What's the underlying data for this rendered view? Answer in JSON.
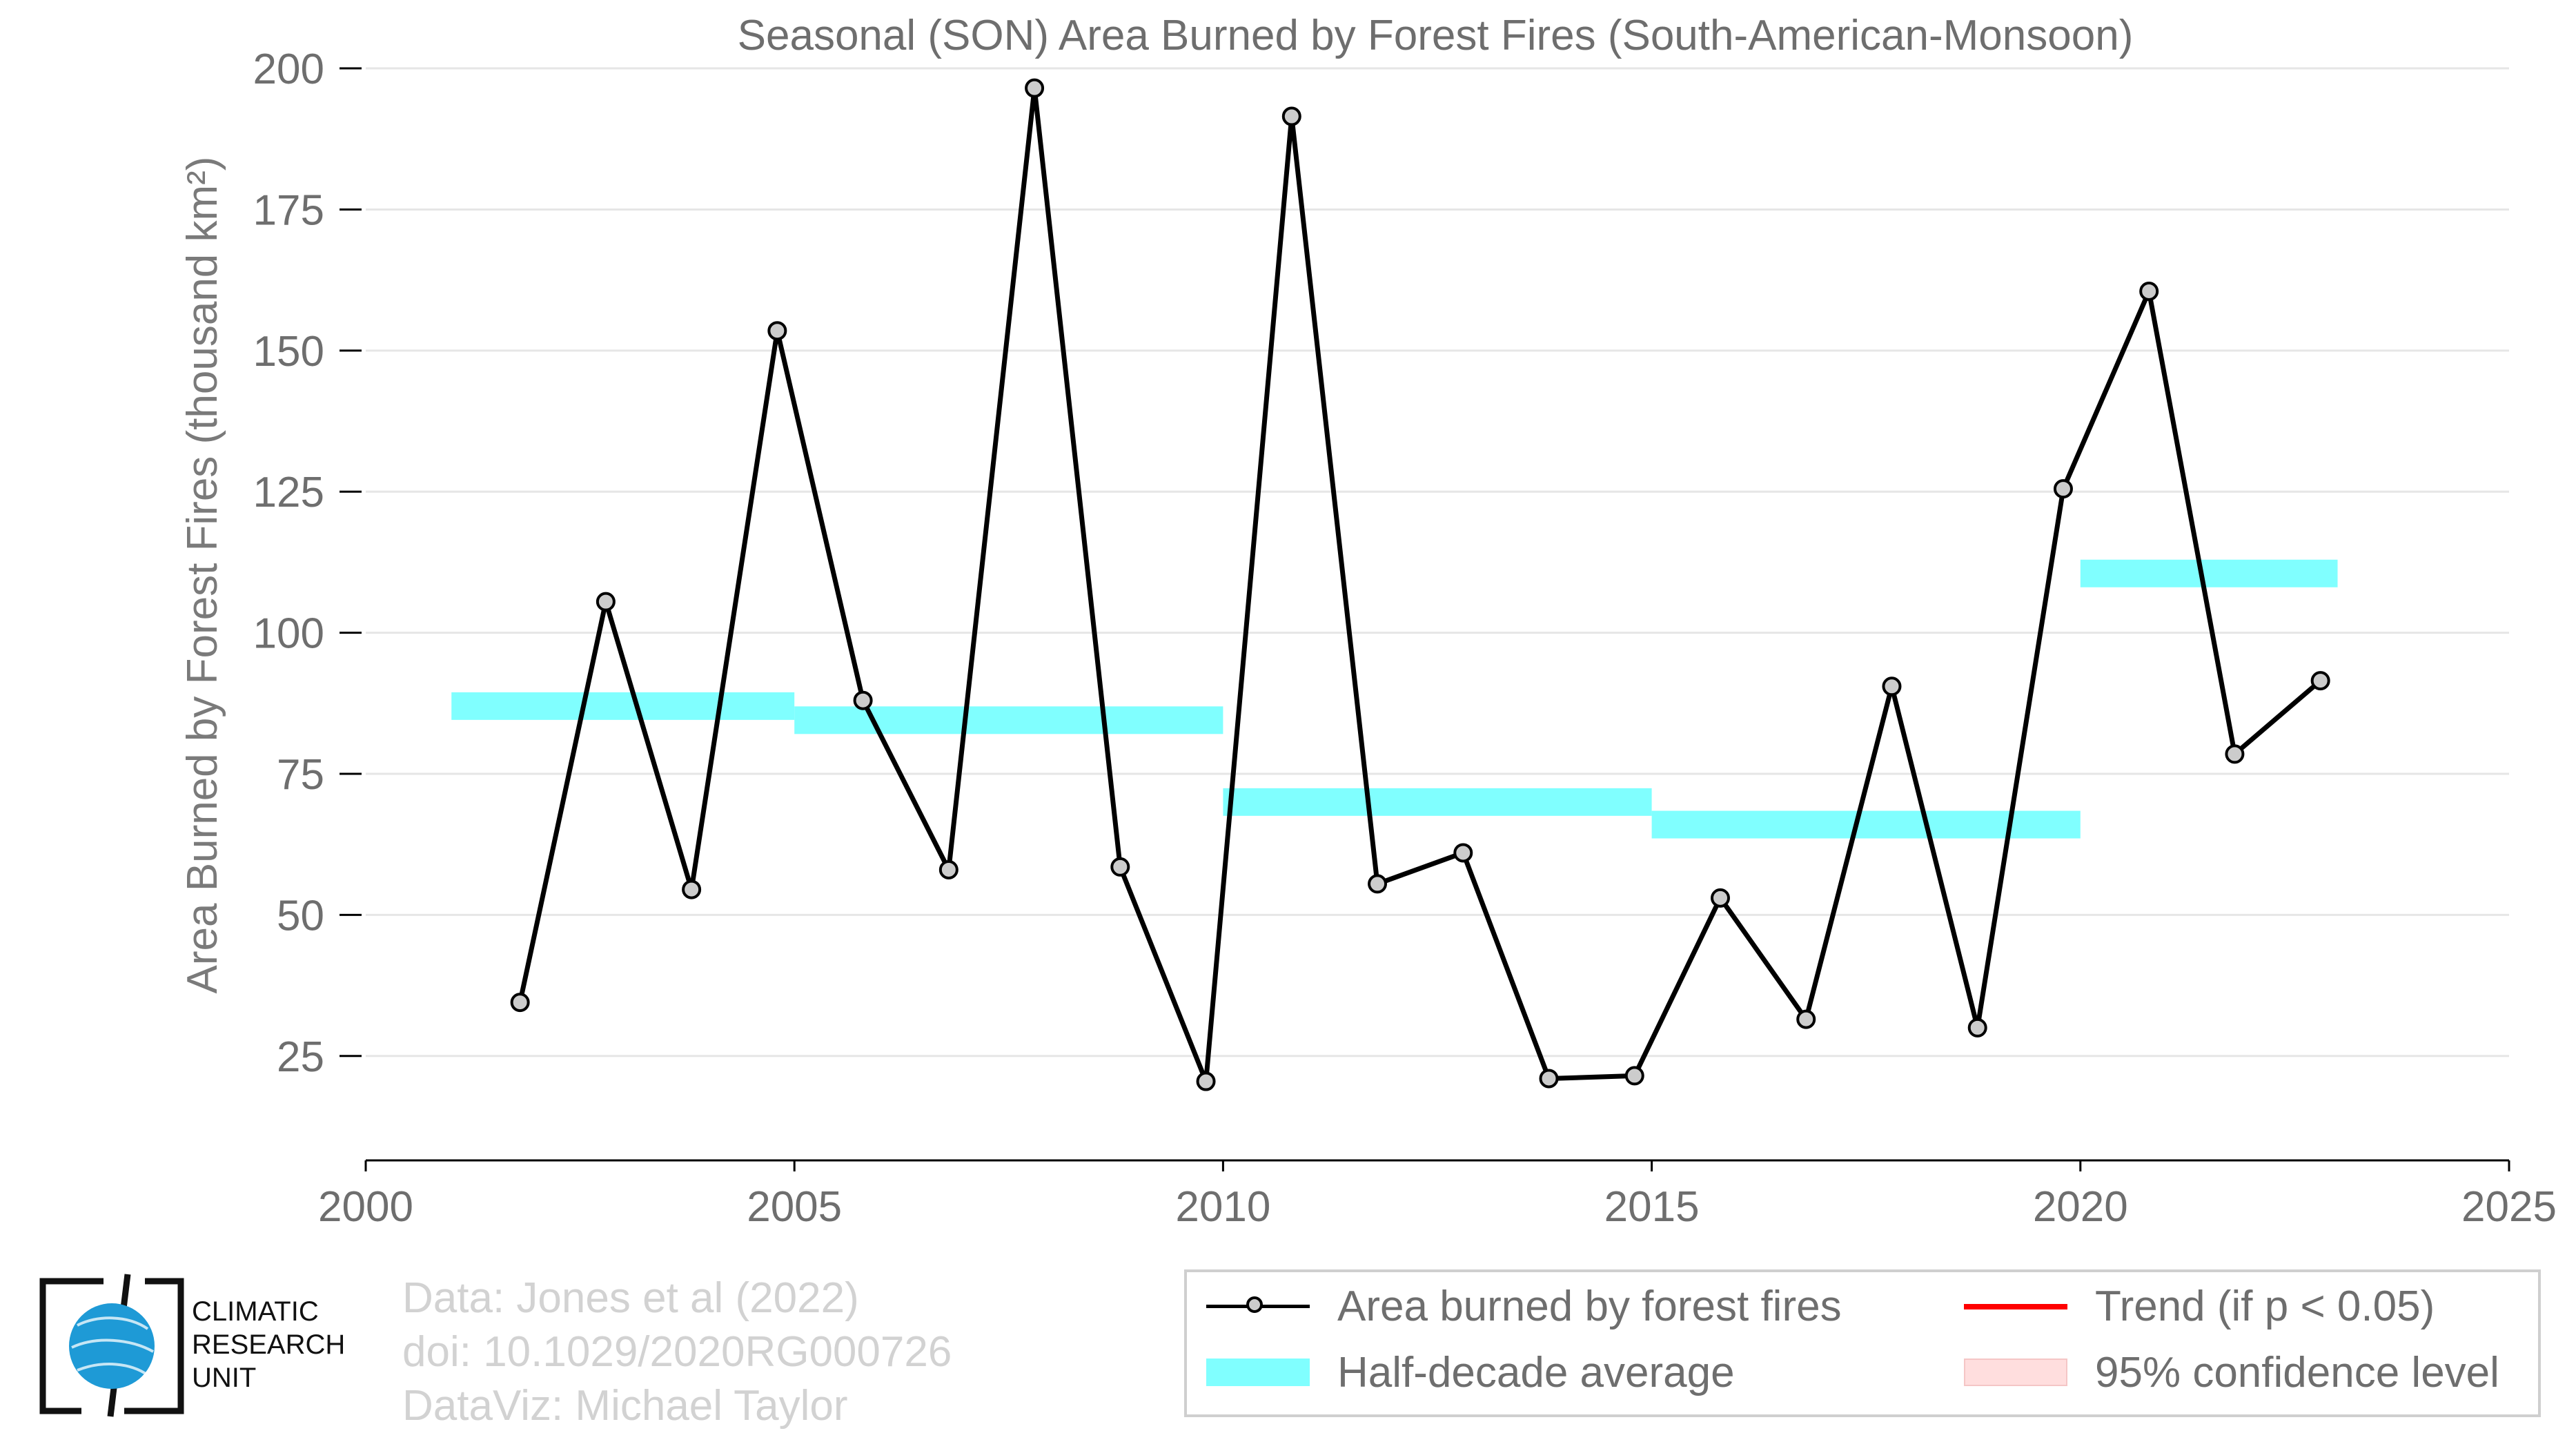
{
  "chart_data": {
    "type": "line",
    "title": "Seasonal (SON) Area Burned by Forest Fires (South-American-Monsoon)",
    "xlabel": "",
    "ylabel": "Area Burned by Forest Fires (thousand km²)",
    "xlim": [
      2000,
      2025
    ],
    "ylim": [
      6.5,
      206
    ],
    "x_ticks": [
      2000,
      2005,
      2010,
      2015,
      2020,
      2025
    ],
    "y_ticks": [
      25,
      50,
      75,
      100,
      125,
      150,
      175,
      200
    ],
    "grid": "horizontal",
    "legend_position": "bottom-right",
    "series": [
      {
        "name": "Area burned by forest fires",
        "color": "#000000",
        "x": [
          2001.8,
          2002.8,
          2003.8,
          2004.8,
          2005.8,
          2006.8,
          2007.8,
          2008.8,
          2009.8,
          2010.8,
          2011.8,
          2012.8,
          2013.8,
          2014.8,
          2015.8,
          2016.8,
          2017.8,
          2018.8,
          2019.8,
          2020.8,
          2021.8,
          2022.8
        ],
        "values": [
          34.5,
          105.5,
          54.5,
          153.5,
          88.0,
          58.0,
          196.5,
          58.5,
          20.5,
          191.5,
          55.5,
          61.0,
          21.0,
          21.5,
          53.0,
          31.5,
          90.5,
          30.0,
          125.5,
          160.5,
          78.5,
          91.5
        ]
      },
      {
        "name": "Half-decade average",
        "color": "#80ffff",
        "segments": [
          {
            "x_start": 2001,
            "x_end": 2005,
            "value": 87.0
          },
          {
            "x_start": 2005,
            "x_end": 2010,
            "value": 84.5
          },
          {
            "x_start": 2010,
            "x_end": 2015,
            "value": 70.0
          },
          {
            "x_start": 2015,
            "x_end": 2020,
            "value": 66.0
          },
          {
            "x_start": 2020,
            "x_end": 2023,
            "value": 110.5
          }
        ]
      }
    ],
    "legend": [
      {
        "label": "Area burned by forest fires",
        "kind": "line-marker",
        "color": "#000000"
      },
      {
        "label": "Trend (if p < 0.05)",
        "kind": "line",
        "color": "#ff0000"
      },
      {
        "label": "Half-decade average",
        "kind": "band",
        "color": "#80ffff"
      },
      {
        "label": "95% confidence level",
        "kind": "band",
        "color": "#ffdede"
      }
    ]
  },
  "credits": {
    "line1": "Data: Jones et al (2022)",
    "line2": "doi: 10.1029/2020RG000726",
    "line3": "DataViz: Michael Taylor"
  },
  "logo": {
    "line1": "CLIMATIC",
    "line2": "RESEARCH",
    "line3": "UNIT",
    "color": "#1e9ad6"
  }
}
